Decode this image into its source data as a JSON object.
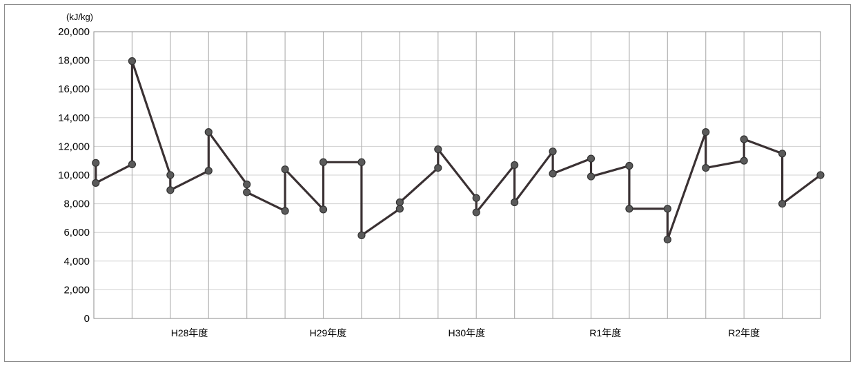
{
  "chart_data": {
    "type": "line",
    "title": "",
    "unit_label": "(kJ/kg)",
    "xlabel": "",
    "ylabel": "",
    "ylim": [
      0,
      20000
    ],
    "yticks": [
      0,
      2000,
      4000,
      6000,
      8000,
      10000,
      12000,
      14000,
      16000,
      18000,
      20000
    ],
    "ytick_labels": [
      "0",
      "2,000",
      "4,000",
      "6,000",
      "8,000",
      "10,000",
      "12,000",
      "14,000",
      "16,000",
      "18,000",
      "20,000"
    ],
    "vertical_gridlines": 19,
    "x_categories": [
      "H28年度",
      "H29年度",
      "H30年度",
      "R1年度",
      "R2年度"
    ],
    "x_category_positions": [
      2.5,
      6.125,
      9.75,
      13.375,
      17.0
    ],
    "line_color": "#3a3133",
    "marker_color": "#5a5a5a",
    "series": [
      {
        "x": [
          0.05,
          0.05,
          1.0,
          1.0,
          2.0,
          2.0,
          3.0,
          3.0,
          4.0,
          4.0,
          5.0,
          5.0,
          6.0,
          6.0,
          7.0,
          7.0,
          8.0,
          8.0,
          9.0,
          9.0,
          10.0,
          10.0,
          11.0,
          11.0,
          12.0,
          12.0,
          13.0,
          13.0,
          14.0,
          14.0,
          15.0,
          15.0,
          16.0,
          16.0,
          17.0,
          17.0,
          18.0,
          18.0,
          19.0
        ],
        "y": [
          10850,
          9450,
          10750,
          17950,
          10000,
          8950,
          10300,
          13000,
          9350,
          8800,
          7500,
          10400,
          7600,
          10900,
          10900,
          5800,
          7650,
          8100,
          10500,
          11800,
          8400,
          7400,
          10700,
          8100,
          11650,
          10100,
          11150,
          9900,
          10650,
          7650,
          7650,
          5500,
          13000,
          10500,
          11000,
          12500,
          11500,
          8000,
          10000
        ]
      }
    ]
  }
}
